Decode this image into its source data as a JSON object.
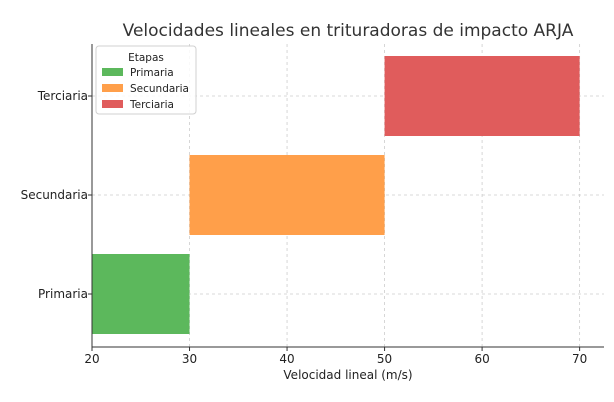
{
  "chart_data": {
    "type": "floating-bar",
    "orientation": "horizontal",
    "title": "Velocidades lineales en trituradoras de impacto ARJA",
    "xlabel": "Velocidad lineal (m/s)",
    "ylabel": "",
    "xlim": [
      20,
      72.5
    ],
    "xticks": [
      20,
      30,
      40,
      50,
      60,
      70
    ],
    "categories": [
      "Primaria",
      "Secundaria",
      "Terciaria"
    ],
    "bars": [
      {
        "category": "Primaria",
        "start": 20,
        "end": 30,
        "color": "#5cb85c"
      },
      {
        "category": "Secundaria",
        "start": 30,
        "end": 50,
        "color": "#ff9f4a"
      },
      {
        "category": "Terciaria",
        "start": 50,
        "end": 70,
        "color": "#e05c5c"
      }
    ],
    "legend": {
      "title": "Etapas",
      "placement": "top-left",
      "items": [
        {
          "label": "Primaria",
          "color": "#5cb85c"
        },
        {
          "label": "Secundaria",
          "color": "#ff9f4a"
        },
        {
          "label": "Terciaria",
          "color": "#e05c5c"
        }
      ]
    },
    "grid": true
  }
}
